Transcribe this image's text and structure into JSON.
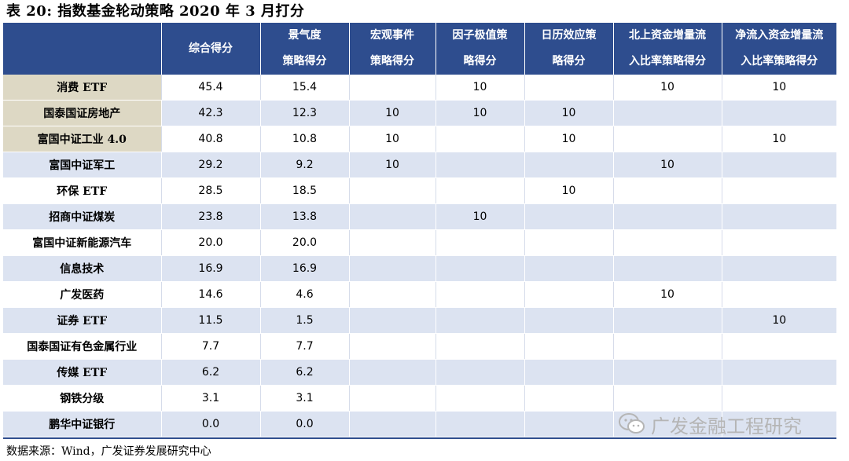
{
  "title": "表 20: 指数基金轮动策略 2020 年 3 月打分",
  "headers": [
    {
      "line1": "",
      "line2": ""
    },
    {
      "line1": "综合得分",
      "line2": ""
    },
    {
      "line1": "景气度",
      "line2": "策略得分"
    },
    {
      "line1": "宏观事件",
      "line2": "策略得分"
    },
    {
      "line1": "因子极值策",
      "line2": "略得分"
    },
    {
      "line1": "日历效应策",
      "line2": "略得分"
    },
    {
      "line1": "北上资金增量流",
      "line2": "入比率策略得分"
    },
    {
      "line1": "净流入资金增量流",
      "line2": "入比率策略得分"
    }
  ],
  "rows": [
    [
      "消费 ETF",
      "45.4",
      "15.4",
      "",
      "10",
      "",
      "10",
      "10"
    ],
    [
      "国泰国证房地产",
      "42.3",
      "12.3",
      "10",
      "10",
      "10",
      "",
      ""
    ],
    [
      "富国中证工业 4.0",
      "40.8",
      "10.8",
      "10",
      "",
      "10",
      "",
      "10"
    ],
    [
      "富国中证军工",
      "29.2",
      "9.2",
      "10",
      "",
      "",
      "10",
      ""
    ],
    [
      "环保 ETF",
      "28.5",
      "18.5",
      "",
      "",
      "10",
      "",
      ""
    ],
    [
      "招商中证煤炭",
      "23.8",
      "13.8",
      "",
      "10",
      "",
      "",
      ""
    ],
    [
      "富国中证新能源汽车",
      "20.0",
      "20.0",
      "",
      "",
      "",
      "",
      ""
    ],
    [
      "信息技术",
      "16.9",
      "16.9",
      "",
      "",
      "",
      "",
      ""
    ],
    [
      "广发医药",
      "14.6",
      "4.6",
      "",
      "",
      "",
      "10",
      ""
    ],
    [
      "证券 ETF",
      "11.5",
      "1.5",
      "",
      "",
      "",
      "",
      "10"
    ],
    [
      "国泰国证有色金属行业",
      "7.7",
      "7.7",
      "",
      "",
      "",
      "",
      ""
    ],
    [
      "传媒 ETF",
      "6.2",
      "6.2",
      "",
      "",
      "",
      "",
      ""
    ],
    [
      "钢铁分级",
      "3.1",
      "3.1",
      "",
      "",
      "",
      "",
      ""
    ],
    [
      "鹏华中证银行",
      "0.0",
      "0.0",
      "",
      "",
      "",
      "",
      ""
    ]
  ],
  "source": "数据来源：Wind，广发证券发展研究中心",
  "watermark": "广发金融工程研究",
  "watermark_icon": "wechat-icon",
  "colors": {
    "header_bg": "#2e4d8e",
    "stripe": "#dce3f1",
    "highlight": "#ddd8c4"
  }
}
